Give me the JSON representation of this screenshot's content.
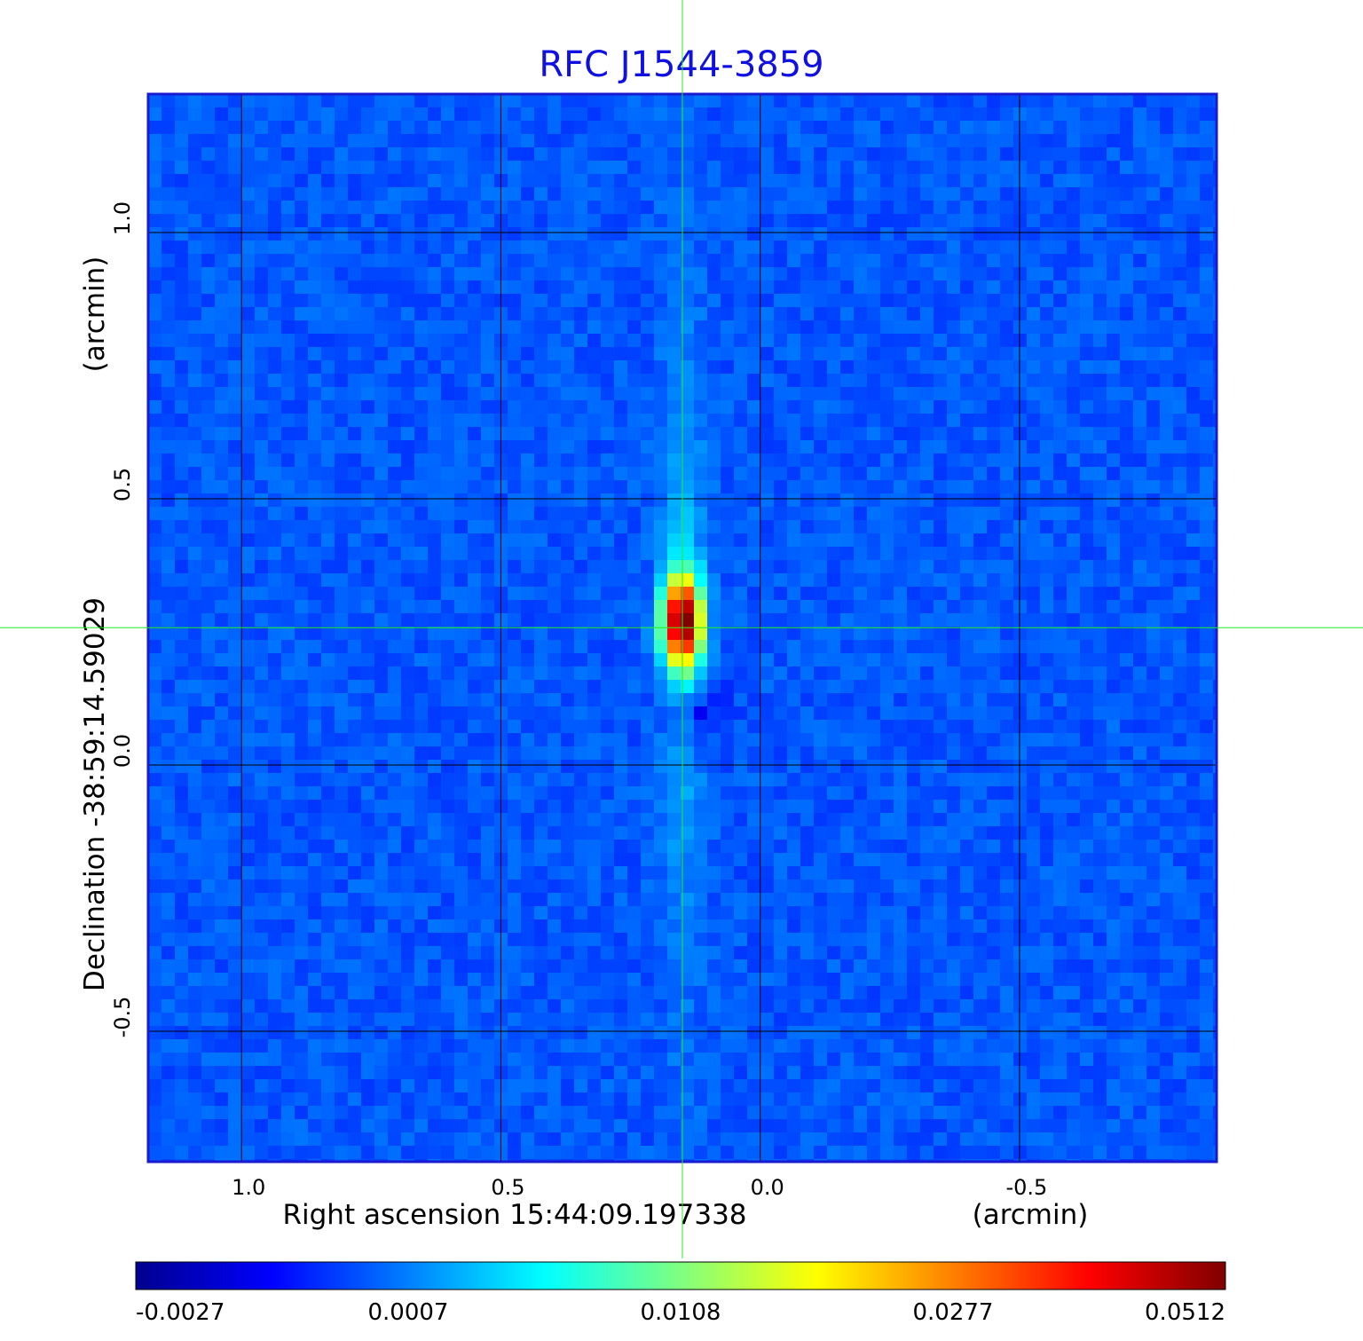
{
  "chart_data": {
    "type": "heatmap",
    "title": "RFC J1544-3859",
    "x_axis": {
      "label_main": "Right ascension  15:44:09.197338",
      "label_unit": "(arcmin)",
      "ticks": [
        {
          "value": 1.0,
          "label": "1.0"
        },
        {
          "value": 0.5,
          "label": "0.5"
        },
        {
          "value": 0.0,
          "label": "0.0"
        },
        {
          "value": -0.5,
          "label": "-0.5"
        }
      ],
      "range": [
        1.18,
        -0.88
      ]
    },
    "y_axis": {
      "label_main": "Declination  -38:59:14.59029",
      "label_unit": "(arcmin)",
      "ticks": [
        {
          "value": 1.0,
          "label": "1.0"
        },
        {
          "value": 0.5,
          "label": "0.5"
        },
        {
          "value": 0.0,
          "label": "0.0"
        },
        {
          "value": -0.5,
          "label": "-0.5"
        }
      ],
      "range": [
        -0.745,
        1.26
      ]
    },
    "grid": true,
    "crosshair": {
      "x": 0.15,
      "y": 0.258
    },
    "source": {
      "x": 0.15,
      "y": 0.27,
      "sigma_x": 0.022,
      "sigma_y": 0.05,
      "peak": 0.0512
    },
    "colorbar": {
      "colormap": "jet",
      "tick_labels": [
        "-0.0027",
        "0.0007",
        "0.0108",
        "0.0277",
        "0.0512"
      ],
      "range": [
        -0.0027,
        0.0512
      ]
    },
    "colors": {
      "frame": "#1a1ad0",
      "crosshair": "#22ee22",
      "grid": "#000000",
      "title": "#1010e0"
    }
  }
}
